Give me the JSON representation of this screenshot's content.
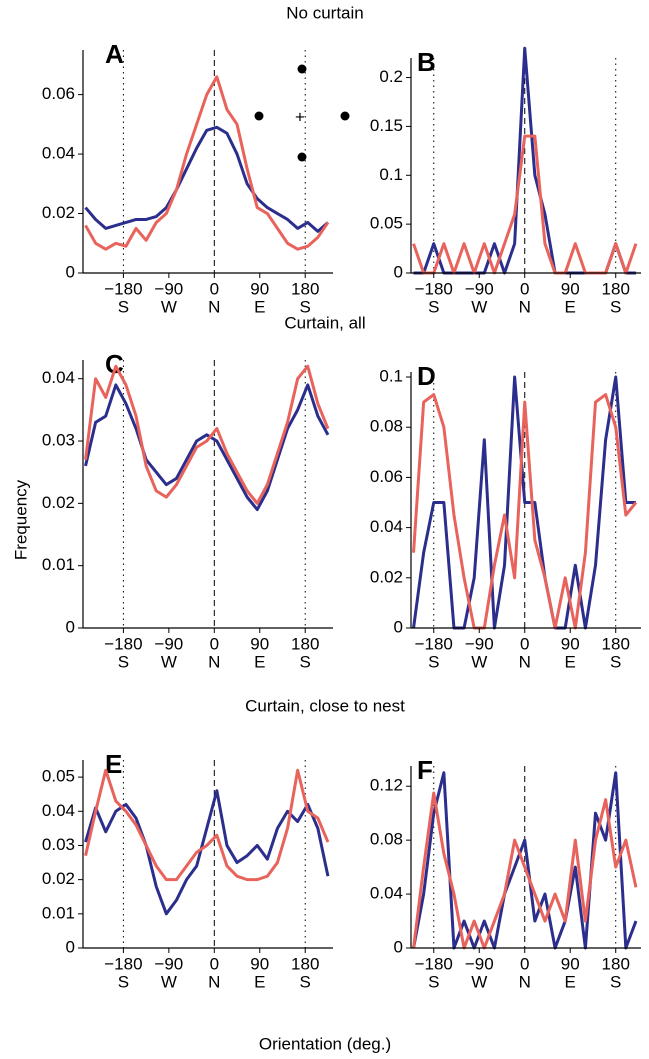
{
  "figure": {
    "sections": [
      "No curtain",
      "Curtain, all",
      "Curtain, close to nest"
    ],
    "ylabel": "Frequency",
    "xlabel": "Orientation (deg.)"
  },
  "chart_data": [
    {
      "type": "line",
      "title": "A",
      "annotation": "+",
      "x": [
        -255,
        -235,
        -215,
        -195,
        -175,
        -155,
        -135,
        -115,
        -95,
        -75,
        -55,
        -35,
        -15,
        5,
        25,
        45,
        65,
        85,
        105,
        125,
        145,
        165,
        185,
        205,
        225
      ],
      "series": [
        {
          "color": "#2b2e8c",
          "values": [
            0.022,
            0.018,
            0.015,
            0.016,
            0.017,
            0.018,
            0.018,
            0.019,
            0.022,
            0.028,
            0.035,
            0.042,
            0.048,
            0.049,
            0.047,
            0.04,
            0.03,
            0.025,
            0.022,
            0.02,
            0.018,
            0.015,
            0.017,
            0.014,
            0.017
          ]
        },
        {
          "color": "#e8635b",
          "values": [
            0.016,
            0.01,
            0.008,
            0.01,
            0.009,
            0.015,
            0.011,
            0.017,
            0.02,
            0.028,
            0.04,
            0.05,
            0.06,
            0.066,
            0.055,
            0.05,
            0.035,
            0.022,
            0.02,
            0.015,
            0.01,
            0.008,
            0.009,
            0.012,
            0.017
          ]
        }
      ],
      "xlim": [
        -260,
        235
      ],
      "ylim": [
        0,
        0.075
      ],
      "xticks": [
        {
          "value": -180,
          "label": "−180"
        },
        {
          "value": -90,
          "label": "−90"
        },
        0,
        90,
        180
      ],
      "xtick_sublabels": [
        "S",
        "W",
        "N",
        "E",
        "S"
      ],
      "yticks": [
        0,
        0.02,
        0.04,
        0.06
      ],
      "vlines": [
        {
          "x": -180,
          "style": "dotted"
        },
        {
          "x": 0,
          "style": "dashed"
        },
        {
          "x": 180,
          "style": "dotted"
        }
      ]
    },
    {
      "type": "line",
      "title": "B",
      "x": [
        -220,
        -200,
        -180,
        -160,
        -140,
        -120,
        -100,
        -80,
        -60,
        -40,
        -20,
        0,
        20,
        40,
        60,
        80,
        100,
        120,
        140,
        160,
        180,
        200,
        220
      ],
      "series": [
        {
          "color": "#2b2e8c",
          "values": [
            0,
            0,
            0.03,
            0,
            0,
            0,
            0,
            0,
            0.03,
            0,
            0.03,
            0.23,
            0.1,
            0.06,
            0,
            0,
            0,
            0,
            0,
            0,
            0.03,
            0,
            0
          ]
        },
        {
          "color": "#e8635b",
          "values": [
            0.03,
            0,
            0,
            0.03,
            0,
            0.03,
            0,
            0.03,
            0,
            0.03,
            0.06,
            0.14,
            0.14,
            0.03,
            0,
            0,
            0.03,
            0,
            0,
            0,
            0.03,
            0,
            0.03
          ]
        }
      ],
      "xlim": [
        -225,
        230
      ],
      "ylim": [
        0,
        0.22
      ],
      "xticks": [
        {
          "value": -180,
          "label": "−180"
        },
        {
          "value": -90,
          "label": "−90"
        },
        0,
        90,
        180
      ],
      "xtick_sublabels": [
        "S",
        "W",
        "N",
        "E",
        "S"
      ],
      "yticks": [
        0,
        0.05,
        0.1,
        0.15,
        0.2
      ],
      "vlines": [
        {
          "x": -180,
          "style": "dotted"
        },
        {
          "x": 0,
          "style": "dashed"
        },
        {
          "x": 180,
          "style": "dotted"
        }
      ]
    },
    {
      "type": "line",
      "title": "C",
      "x": [
        -255,
        -235,
        -215,
        -195,
        -175,
        -155,
        -135,
        -115,
        -95,
        -75,
        -55,
        -35,
        -15,
        5,
        25,
        45,
        65,
        85,
        105,
        125,
        145,
        165,
        185,
        205,
        225
      ],
      "series": [
        {
          "color": "#2b2e8c",
          "values": [
            0.026,
            0.033,
            0.034,
            0.039,
            0.036,
            0.032,
            0.027,
            0.025,
            0.023,
            0.024,
            0.027,
            0.03,
            0.031,
            0.03,
            0.027,
            0.024,
            0.021,
            0.019,
            0.022,
            0.027,
            0.032,
            0.035,
            0.039,
            0.034,
            0.031
          ]
        },
        {
          "color": "#e8635b",
          "values": [
            0.027,
            0.04,
            0.037,
            0.042,
            0.039,
            0.034,
            0.026,
            0.022,
            0.021,
            0.023,
            0.026,
            0.029,
            0.03,
            0.032,
            0.028,
            0.025,
            0.022,
            0.02,
            0.023,
            0.028,
            0.033,
            0.04,
            0.042,
            0.036,
            0.032
          ]
        }
      ],
      "xlim": [
        -260,
        235
      ],
      "ylim": [
        0,
        0.043
      ],
      "xticks": [
        {
          "value": -180,
          "label": "−180"
        },
        {
          "value": -90,
          "label": "−90"
        },
        0,
        90,
        180
      ],
      "xtick_sublabels": [
        "S",
        "W",
        "N",
        "E",
        "S"
      ],
      "yticks": [
        0,
        0.01,
        0.02,
        0.03,
        0.04
      ],
      "vlines": [
        {
          "x": -180,
          "style": "dotted"
        },
        {
          "x": 0,
          "style": "dashed"
        },
        {
          "x": 180,
          "style": "dotted"
        }
      ]
    },
    {
      "type": "line",
      "title": "D",
      "x": [
        -220,
        -200,
        -180,
        -160,
        -140,
        -120,
        -100,
        -80,
        -60,
        -40,
        -20,
        0,
        20,
        40,
        60,
        80,
        100,
        120,
        140,
        160,
        180,
        200,
        220
      ],
      "series": [
        {
          "color": "#2b2e8c",
          "values": [
            0,
            0.03,
            0.05,
            0.05,
            0,
            0,
            0.02,
            0.075,
            0,
            0.025,
            0.1,
            0.05,
            0.05,
            0.02,
            0,
            0,
            0.025,
            0,
            0.025,
            0.075,
            0.1,
            0.05,
            0.05
          ]
        },
        {
          "color": "#e8635b",
          "values": [
            0.03,
            0.09,
            0.093,
            0.08,
            0.045,
            0.02,
            0,
            0,
            0.025,
            0.045,
            0.02,
            0.09,
            0.035,
            0.02,
            0,
            0.02,
            0,
            0.03,
            0.09,
            0.093,
            0.08,
            0.045,
            0.05
          ]
        }
      ],
      "xlim": [
        -225,
        230
      ],
      "ylim": [
        0,
        0.102
      ],
      "xticks": [
        {
          "value": -180,
          "label": "−180"
        },
        {
          "value": -90,
          "label": "−90"
        },
        0,
        90,
        180
      ],
      "xtick_sublabels": [
        "S",
        "W",
        "N",
        "E",
        "S"
      ],
      "yticks": [
        0,
        0.02,
        0.04,
        0.06,
        0.08,
        0.1
      ],
      "vlines": [
        {
          "x": -180,
          "style": "dotted"
        },
        {
          "x": 0,
          "style": "dashed"
        },
        {
          "x": 180,
          "style": "dotted"
        }
      ]
    },
    {
      "type": "line",
      "title": "E",
      "x": [
        -255,
        -235,
        -215,
        -195,
        -175,
        -155,
        -135,
        -115,
        -95,
        -75,
        -55,
        -35,
        -15,
        5,
        25,
        45,
        65,
        85,
        105,
        125,
        145,
        165,
        185,
        205,
        225
      ],
      "series": [
        {
          "color": "#2b2e8c",
          "values": [
            0.031,
            0.041,
            0.034,
            0.04,
            0.042,
            0.038,
            0.03,
            0.018,
            0.01,
            0.014,
            0.02,
            0.024,
            0.035,
            0.046,
            0.03,
            0.025,
            0.027,
            0.03,
            0.026,
            0.035,
            0.04,
            0.037,
            0.042,
            0.035,
            0.021
          ]
        },
        {
          "color": "#e8635b",
          "values": [
            0.027,
            0.04,
            0.052,
            0.043,
            0.04,
            0.036,
            0.03,
            0.024,
            0.02,
            0.02,
            0.024,
            0.028,
            0.03,
            0.033,
            0.024,
            0.021,
            0.02,
            0.02,
            0.021,
            0.025,
            0.035,
            0.052,
            0.04,
            0.038,
            0.031
          ]
        }
      ],
      "xlim": [
        -260,
        235
      ],
      "ylim": [
        0,
        0.055
      ],
      "xticks": [
        {
          "value": -180,
          "label": "−180"
        },
        {
          "value": -90,
          "label": "−90"
        },
        0,
        90,
        180
      ],
      "xtick_sublabels": [
        "S",
        "W",
        "N",
        "E",
        "S"
      ],
      "yticks": [
        0,
        0.01,
        0.02,
        0.03,
        0.04,
        0.05
      ],
      "vlines": [
        {
          "x": -180,
          "style": "dotted"
        },
        {
          "x": 0,
          "style": "dashed"
        },
        {
          "x": 180,
          "style": "dotted"
        }
      ]
    },
    {
      "type": "line",
      "title": "F",
      "x": [
        -220,
        -200,
        -180,
        -160,
        -140,
        -120,
        -100,
        -80,
        -60,
        -40,
        -20,
        0,
        20,
        40,
        60,
        80,
        100,
        120,
        140,
        160,
        180,
        200,
        220
      ],
      "series": [
        {
          "color": "#2b2e8c",
          "values": [
            0,
            0.04,
            0.1,
            0.13,
            0,
            0.02,
            0,
            0.02,
            0,
            0.04,
            0.06,
            0.08,
            0.02,
            0.04,
            0,
            0.02,
            0.06,
            0,
            0.1,
            0.08,
            0.13,
            0,
            0.02
          ]
        },
        {
          "color": "#e8635b",
          "values": [
            0,
            0.06,
            0.115,
            0.07,
            0.04,
            0,
            0.02,
            0,
            0.02,
            0.04,
            0.08,
            0.06,
            0.04,
            0.02,
            0.04,
            0.02,
            0.08,
            0.02,
            0.08,
            0.11,
            0.06,
            0.08,
            0.045
          ]
        }
      ],
      "xlim": [
        -225,
        230
      ],
      "ylim": [
        0,
        0.135
      ],
      "xticks": [
        {
          "value": -180,
          "label": "−180"
        },
        {
          "value": -90,
          "label": "−90"
        },
        0,
        90,
        180
      ],
      "xtick_sublabels": [
        "S",
        "W",
        "N",
        "E",
        "S"
      ],
      "yticks": [
        0,
        0.04,
        0.08,
        0.12
      ],
      "vlines": [
        {
          "x": -180,
          "style": "dotted"
        },
        {
          "x": 0,
          "style": "dashed"
        },
        {
          "x": 180,
          "style": "dotted"
        }
      ]
    }
  ]
}
